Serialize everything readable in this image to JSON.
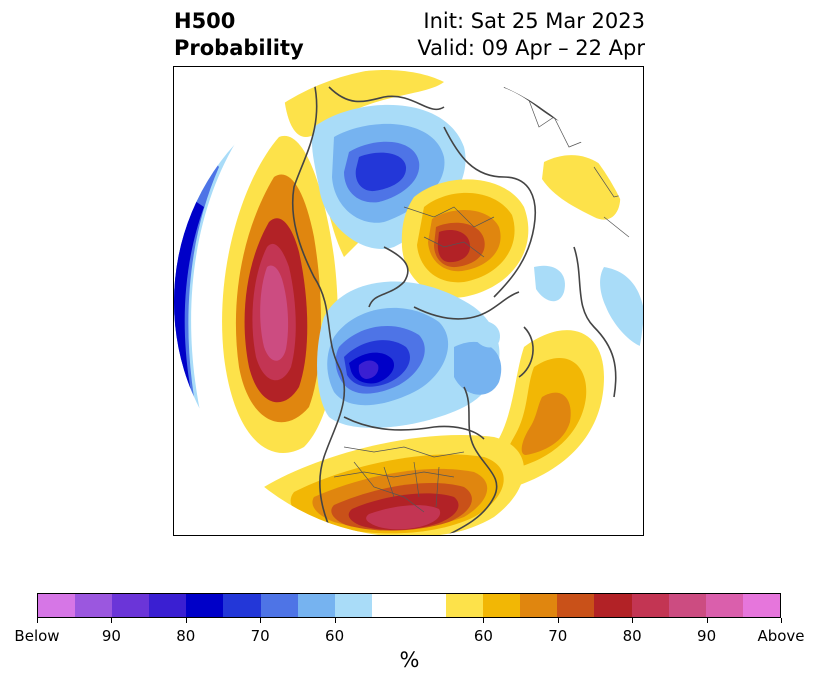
{
  "title": {
    "left_line1": "H500",
    "left_line2": "Probability",
    "right_line1": "Init: Sat 25 Mar 2023",
    "right_line2": "Valid: 09 Apr – 22 Apr"
  },
  "map": {
    "projection": "north-polar-stereographic",
    "center_icon": "north-pole-hemisphere-map",
    "anomalies": [
      {
        "name": "north-pacific-positive-anomaly",
        "sign": "above",
        "max_percent": 90
      },
      {
        "name": "eastern-us-positive-anomaly",
        "sign": "above",
        "max_percent": 80
      },
      {
        "name": "western-canada-negative-anomaly",
        "sign": "below",
        "max_percent": 80
      },
      {
        "name": "arctic-negative-anomaly",
        "sign": "below",
        "max_percent": 70
      },
      {
        "name": "siberia-positive-anomaly",
        "sign": "above",
        "max_percent": 80
      },
      {
        "name": "north-atlantic-positive-anomaly",
        "sign": "above",
        "max_percent": 70
      },
      {
        "name": "bering-negative-anomaly",
        "sign": "below",
        "max_percent": 90
      }
    ]
  },
  "colorbar": {
    "colors": [
      "#d676e6",
      "#9b57df",
      "#6b35d8",
      "#3a1fd2",
      "#0000c8",
      "#2337d8",
      "#4e74e6",
      "#76b3f0",
      "#a9dcf8",
      "#ffffff",
      "#ffffff",
      "#fde24a",
      "#f2b705",
      "#e0860f",
      "#c95119",
      "#b22226",
      "#c33553",
      "#cc4c81",
      "#da5fac",
      "#e676dc"
    ],
    "labels": [
      "Below",
      "90",
      "80",
      "70",
      "60",
      "60",
      "70",
      "80",
      "90",
      "Above"
    ],
    "unit": "%"
  }
}
